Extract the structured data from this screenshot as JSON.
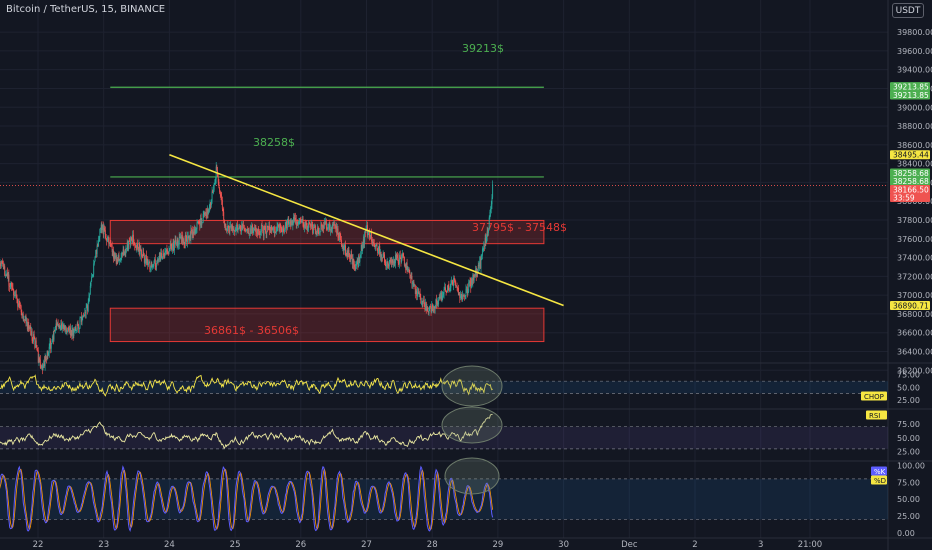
{
  "header": {
    "symbol_title": "Bitcoin / TetherUS, 15, BINANCE",
    "currency_button": "USDT"
  },
  "colors": {
    "background": "#131722",
    "grid": "#1e2230",
    "up": "#26a69a",
    "down": "#ef5350",
    "level_line": "#4caf50",
    "trendline": "#f5e642",
    "zone": "#e53935",
    "axis_text": "#b2b5be",
    "rsi_line": "#e8e6a0",
    "chop_line": "#f3e54a",
    "stoch_k": "#5d5dff",
    "stoch_d": "#ff9800"
  },
  "chart_data": [
    {
      "type": "candlestick",
      "title": "Bitcoin / TetherUS, 15, BINANCE",
      "x_tick_labels": [
        "22",
        "23",
        "24",
        "25",
        "26",
        "27",
        "28",
        "29",
        "30",
        "Dec",
        "2",
        "3",
        "21:00"
      ],
      "y_tick_labels": [
        "36200.00",
        "36400.00",
        "36600.00",
        "36800.00",
        "37000.00",
        "37200.00",
        "37400.00",
        "37600.00",
        "37800.00",
        "38000.00",
        "38200.00",
        "38400.00",
        "38600.00",
        "38800.00",
        "39000.00",
        "39200.00",
        "39400.00",
        "39600.00",
        "39800.00"
      ],
      "ylim": [
        36150,
        39950
      ],
      "price_path": [
        {
          "t": 21.4,
          "p": 37400
        },
        {
          "t": 21.65,
          "p": 37000
        },
        {
          "t": 21.95,
          "p": 36500
        },
        {
          "t": 22.05,
          "p": 36200
        },
        {
          "t": 22.3,
          "p": 36700
        },
        {
          "t": 22.55,
          "p": 36600
        },
        {
          "t": 22.75,
          "p": 36850
        },
        {
          "t": 22.95,
          "p": 37750
        },
        {
          "t": 23.2,
          "p": 37350
        },
        {
          "t": 23.45,
          "p": 37600
        },
        {
          "t": 23.7,
          "p": 37300
        },
        {
          "t": 24.0,
          "p": 37500
        },
        {
          "t": 24.35,
          "p": 37650
        },
        {
          "t": 24.6,
          "p": 37900
        },
        {
          "t": 24.72,
          "p": 38350
        },
        {
          "t": 24.85,
          "p": 37700
        },
        {
          "t": 25.2,
          "p": 37700
        },
        {
          "t": 25.6,
          "p": 37680
        },
        {
          "t": 25.9,
          "p": 37800
        },
        {
          "t": 26.2,
          "p": 37700
        },
        {
          "t": 26.5,
          "p": 37750
        },
        {
          "t": 26.7,
          "p": 37450
        },
        {
          "t": 26.85,
          "p": 37300
        },
        {
          "t": 27.0,
          "p": 37700
        },
        {
          "t": 27.3,
          "p": 37350
        },
        {
          "t": 27.55,
          "p": 37400
        },
        {
          "t": 27.75,
          "p": 37050
        },
        {
          "t": 27.95,
          "p": 36830
        },
        {
          "t": 28.15,
          "p": 37000
        },
        {
          "t": 28.35,
          "p": 37150
        },
        {
          "t": 28.45,
          "p": 36950
        },
        {
          "t": 28.6,
          "p": 37150
        },
        {
          "t": 28.72,
          "p": 37300
        },
        {
          "t": 28.85,
          "p": 37700
        },
        {
          "t": 28.92,
          "p": 38150
        }
      ],
      "last_price": 38166.5,
      "price_labels": [
        {
          "text": "39213.85",
          "price": 39220,
          "color": "#4caf50"
        },
        {
          "text": "39213.85",
          "price": 39130,
          "color": "#4caf50"
        },
        {
          "text": "38495.44",
          "price": 38495,
          "color": "#f5e642"
        },
        {
          "text": "38258.68",
          "price": 38300,
          "color": "#4caf50"
        },
        {
          "text": "38258.68",
          "price": 38215,
          "color": "#4caf50"
        },
        {
          "text": "38166.50",
          "price": 38125,
          "color": "#ef5350"
        },
        {
          "text": "33:59",
          "price": 38040,
          "color": "#ef5350"
        },
        {
          "text": "36890.71",
          "price": 36890,
          "color": "#f5e642"
        }
      ],
      "levels": [
        {
          "label": "39213$",
          "price": 39213,
          "t_start": 23.1,
          "t_end": 29.7
        },
        {
          "label": "38258$",
          "price": 38258,
          "t_start": 23.1,
          "t_end": 29.7
        }
      ],
      "zones": [
        {
          "label": "37795$ - 37548$",
          "top": 37795,
          "bottom": 37548,
          "t_start": 23.1,
          "t_end": 29.7
        },
        {
          "label": "36861$ - 36506$",
          "top": 36861,
          "bottom": 36506,
          "t_start": 23.1,
          "t_end": 29.7
        }
      ],
      "trendline": {
        "t1": 24.0,
        "p1": 38495,
        "t2": 30.0,
        "p2": 36890
      }
    },
    {
      "type": "line",
      "name": "CHOP",
      "y_tick_labels": [
        "75.00",
        "50.00",
        "25.00"
      ],
      "ylim": [
        10,
        95
      ],
      "bands": [
        61.8,
        38.2
      ]
    },
    {
      "type": "line",
      "name": "RSI",
      "y_tick_labels": [
        "75.00",
        "50.00",
        "25.00"
      ],
      "ylim": [
        10,
        100
      ],
      "bands": [
        70,
        30
      ]
    },
    {
      "type": "line",
      "series": [
        {
          "name": "%K"
        },
        {
          "name": "%D"
        }
      ],
      "y_tick_labels": [
        "100.00",
        "75.00",
        "50.00",
        "25.00",
        "0.00"
      ],
      "ylim": [
        -3,
        105
      ],
      "bands": [
        80,
        20
      ]
    }
  ]
}
